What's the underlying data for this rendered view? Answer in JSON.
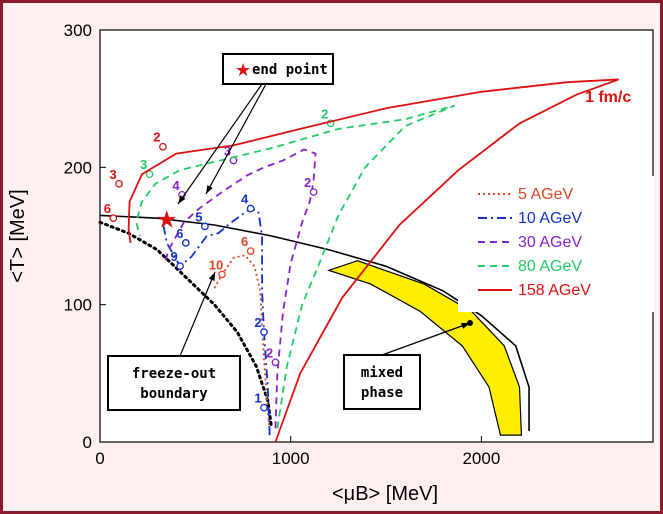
{
  "chart_data": {
    "type": "line",
    "xlabel": "<μB> [MeV]",
    "ylabel": "<T> [MeV]",
    "xlim": [
      0,
      2900
    ],
    "ylim": [
      0,
      300
    ],
    "x_ticks": [
      "0",
      "1000",
      "2000"
    ],
    "y_ticks": [
      "0",
      "100",
      "200",
      "300"
    ],
    "legend_position": "right",
    "colors": {
      "5 AGeV": "#dd4422",
      "10 AGeV": "#1133cc",
      "30 AGeV": "#8822cc",
      "80 AGeV": "#22cc66",
      "158 AGeV": "#dd1111"
    },
    "series": [
      {
        "name": "5 AGeV",
        "style": "dotted",
        "points": [
          [
            890,
            5
          ],
          [
            860,
            60
          ],
          [
            840,
            110
          ],
          [
            810,
            128
          ],
          [
            760,
            136
          ],
          [
            700,
            134
          ],
          [
            640,
            122
          ],
          [
            600,
            112
          ]
        ],
        "labels": [
          {
            "text": "6",
            "x": 790,
            "y": 139
          },
          {
            "text": "10",
            "x": 640,
            "y": 122
          }
        ]
      },
      {
        "name": "10 AGeV",
        "style": "dashdot",
        "points": [
          [
            890,
            5
          ],
          [
            880,
            40
          ],
          [
            860,
            80
          ],
          [
            850,
            110
          ],
          [
            850,
            130
          ],
          [
            850,
            150
          ],
          [
            830,
            168
          ],
          [
            790,
            170
          ],
          [
            690,
            160
          ],
          [
            620,
            152
          ],
          [
            560,
            150
          ],
          [
            480,
            135
          ],
          [
            420,
            128
          ],
          [
            350,
            145
          ],
          [
            330,
            160
          ]
        ],
        "labels": [
          {
            "text": "1",
            "x": 860,
            "y": 25
          },
          {
            "text": "2",
            "x": 860,
            "y": 80
          },
          {
            "text": "4",
            "x": 790,
            "y": 170
          },
          {
            "text": "5",
            "x": 550,
            "y": 157
          },
          {
            "text": "6",
            "x": 450,
            "y": 145
          },
          {
            "text": "9",
            "x": 420,
            "y": 128
          }
        ]
      },
      {
        "name": "30 AGeV",
        "style": "dashed",
        "points": [
          [
            920,
            10
          ],
          [
            930,
            50
          ],
          [
            960,
            95
          ],
          [
            1000,
            130
          ],
          [
            1060,
            160
          ],
          [
            1100,
            175
          ],
          [
            1120,
            190
          ],
          [
            1130,
            210
          ],
          [
            1070,
            213
          ],
          [
            960,
            205
          ],
          [
            860,
            200
          ],
          [
            770,
            194
          ],
          [
            650,
            183
          ],
          [
            520,
            170
          ],
          [
            440,
            160
          ],
          [
            360,
            140
          ],
          [
            340,
            130
          ]
        ],
        "labels": [
          {
            "text": "2",
            "x": 920,
            "y": 58
          },
          {
            "text": "2",
            "x": 1120,
            "y": 182
          },
          {
            "text": "3",
            "x": 700,
            "y": 205
          },
          {
            "text": "4",
            "x": 430,
            "y": 180
          }
        ]
      },
      {
        "name": "80 AGeV",
        "style": "dashed",
        "points": [
          [
            930,
            10
          ],
          [
            980,
            55
          ],
          [
            1060,
            100
          ],
          [
            1150,
            130
          ],
          [
            1250,
            165
          ],
          [
            1390,
            200
          ],
          [
            1600,
            230
          ],
          [
            1860,
            245
          ],
          [
            1600,
            235
          ],
          [
            1250,
            228
          ],
          [
            900,
            214
          ],
          [
            600,
            204
          ],
          [
            420,
            198
          ],
          [
            290,
            188
          ],
          [
            220,
            175
          ],
          [
            190,
            160
          ],
          [
            210,
            150
          ]
        ],
        "labels": [
          {
            "text": "2",
            "x": 1210,
            "y": 232
          },
          {
            "text": "3",
            "x": 260,
            "y": 195
          }
        ]
      },
      {
        "name": "158 AGeV",
        "style": "solid",
        "points": [
          [
            920,
            0
          ],
          [
            1050,
            50
          ],
          [
            1270,
            105
          ],
          [
            1570,
            158
          ],
          [
            1880,
            198
          ],
          [
            2200,
            232
          ],
          [
            2500,
            253
          ],
          [
            2720,
            264
          ],
          [
            2450,
            262
          ],
          [
            2000,
            255
          ],
          [
            1500,
            243
          ],
          [
            1050,
            228
          ],
          [
            700,
            216
          ],
          [
            400,
            210
          ],
          [
            220,
            195
          ],
          [
            155,
            175
          ],
          [
            150,
            155
          ],
          [
            160,
            145
          ]
        ],
        "labels": [
          {
            "text": "2",
            "x": 330,
            "y": 215
          },
          {
            "text": "3",
            "x": 100,
            "y": 188
          },
          {
            "text": "6",
            "x": 70,
            "y": 163
          }
        ]
      }
    ],
    "crossover_line": {
      "points": [
        [
          0,
          165
        ],
        [
          300,
          163
        ],
        [
          600,
          158
        ],
        [
          900,
          150
        ],
        [
          1200,
          140
        ],
        [
          1500,
          128
        ],
        [
          1800,
          110
        ],
        [
          2000,
          92
        ],
        [
          2180,
          70
        ],
        [
          2250,
          40
        ],
        [
          2250,
          8
        ]
      ]
    },
    "mixed_phase_band": {
      "outer": [
        [
          1350,
          132
        ],
        [
          1700,
          115
        ],
        [
          1950,
          95
        ],
        [
          2120,
          70
        ],
        [
          2200,
          40
        ],
        [
          2210,
          5
        ]
      ],
      "inner": [
        [
          2100,
          5
        ],
        [
          2040,
          40
        ],
        [
          1900,
          70
        ],
        [
          1680,
          95
        ],
        [
          1420,
          115
        ],
        [
          1200,
          125
        ]
      ]
    },
    "freezeout_boundary": {
      "points": [
        [
          0,
          160
        ],
        [
          150,
          152
        ],
        [
          300,
          140
        ],
        [
          450,
          120
        ],
        [
          600,
          100
        ],
        [
          720,
          80
        ],
        [
          820,
          55
        ],
        [
          880,
          30
        ],
        [
          900,
          10
        ]
      ]
    },
    "end_point": {
      "x": 350,
      "y": 162
    },
    "annotations": {
      "end_point": "end point",
      "freeze_out_1": "freeze-out",
      "freeze_out_2": "boundary",
      "mixed_1": "mixed",
      "mixed_2": "phase",
      "time_label": "1 fm/c"
    }
  }
}
